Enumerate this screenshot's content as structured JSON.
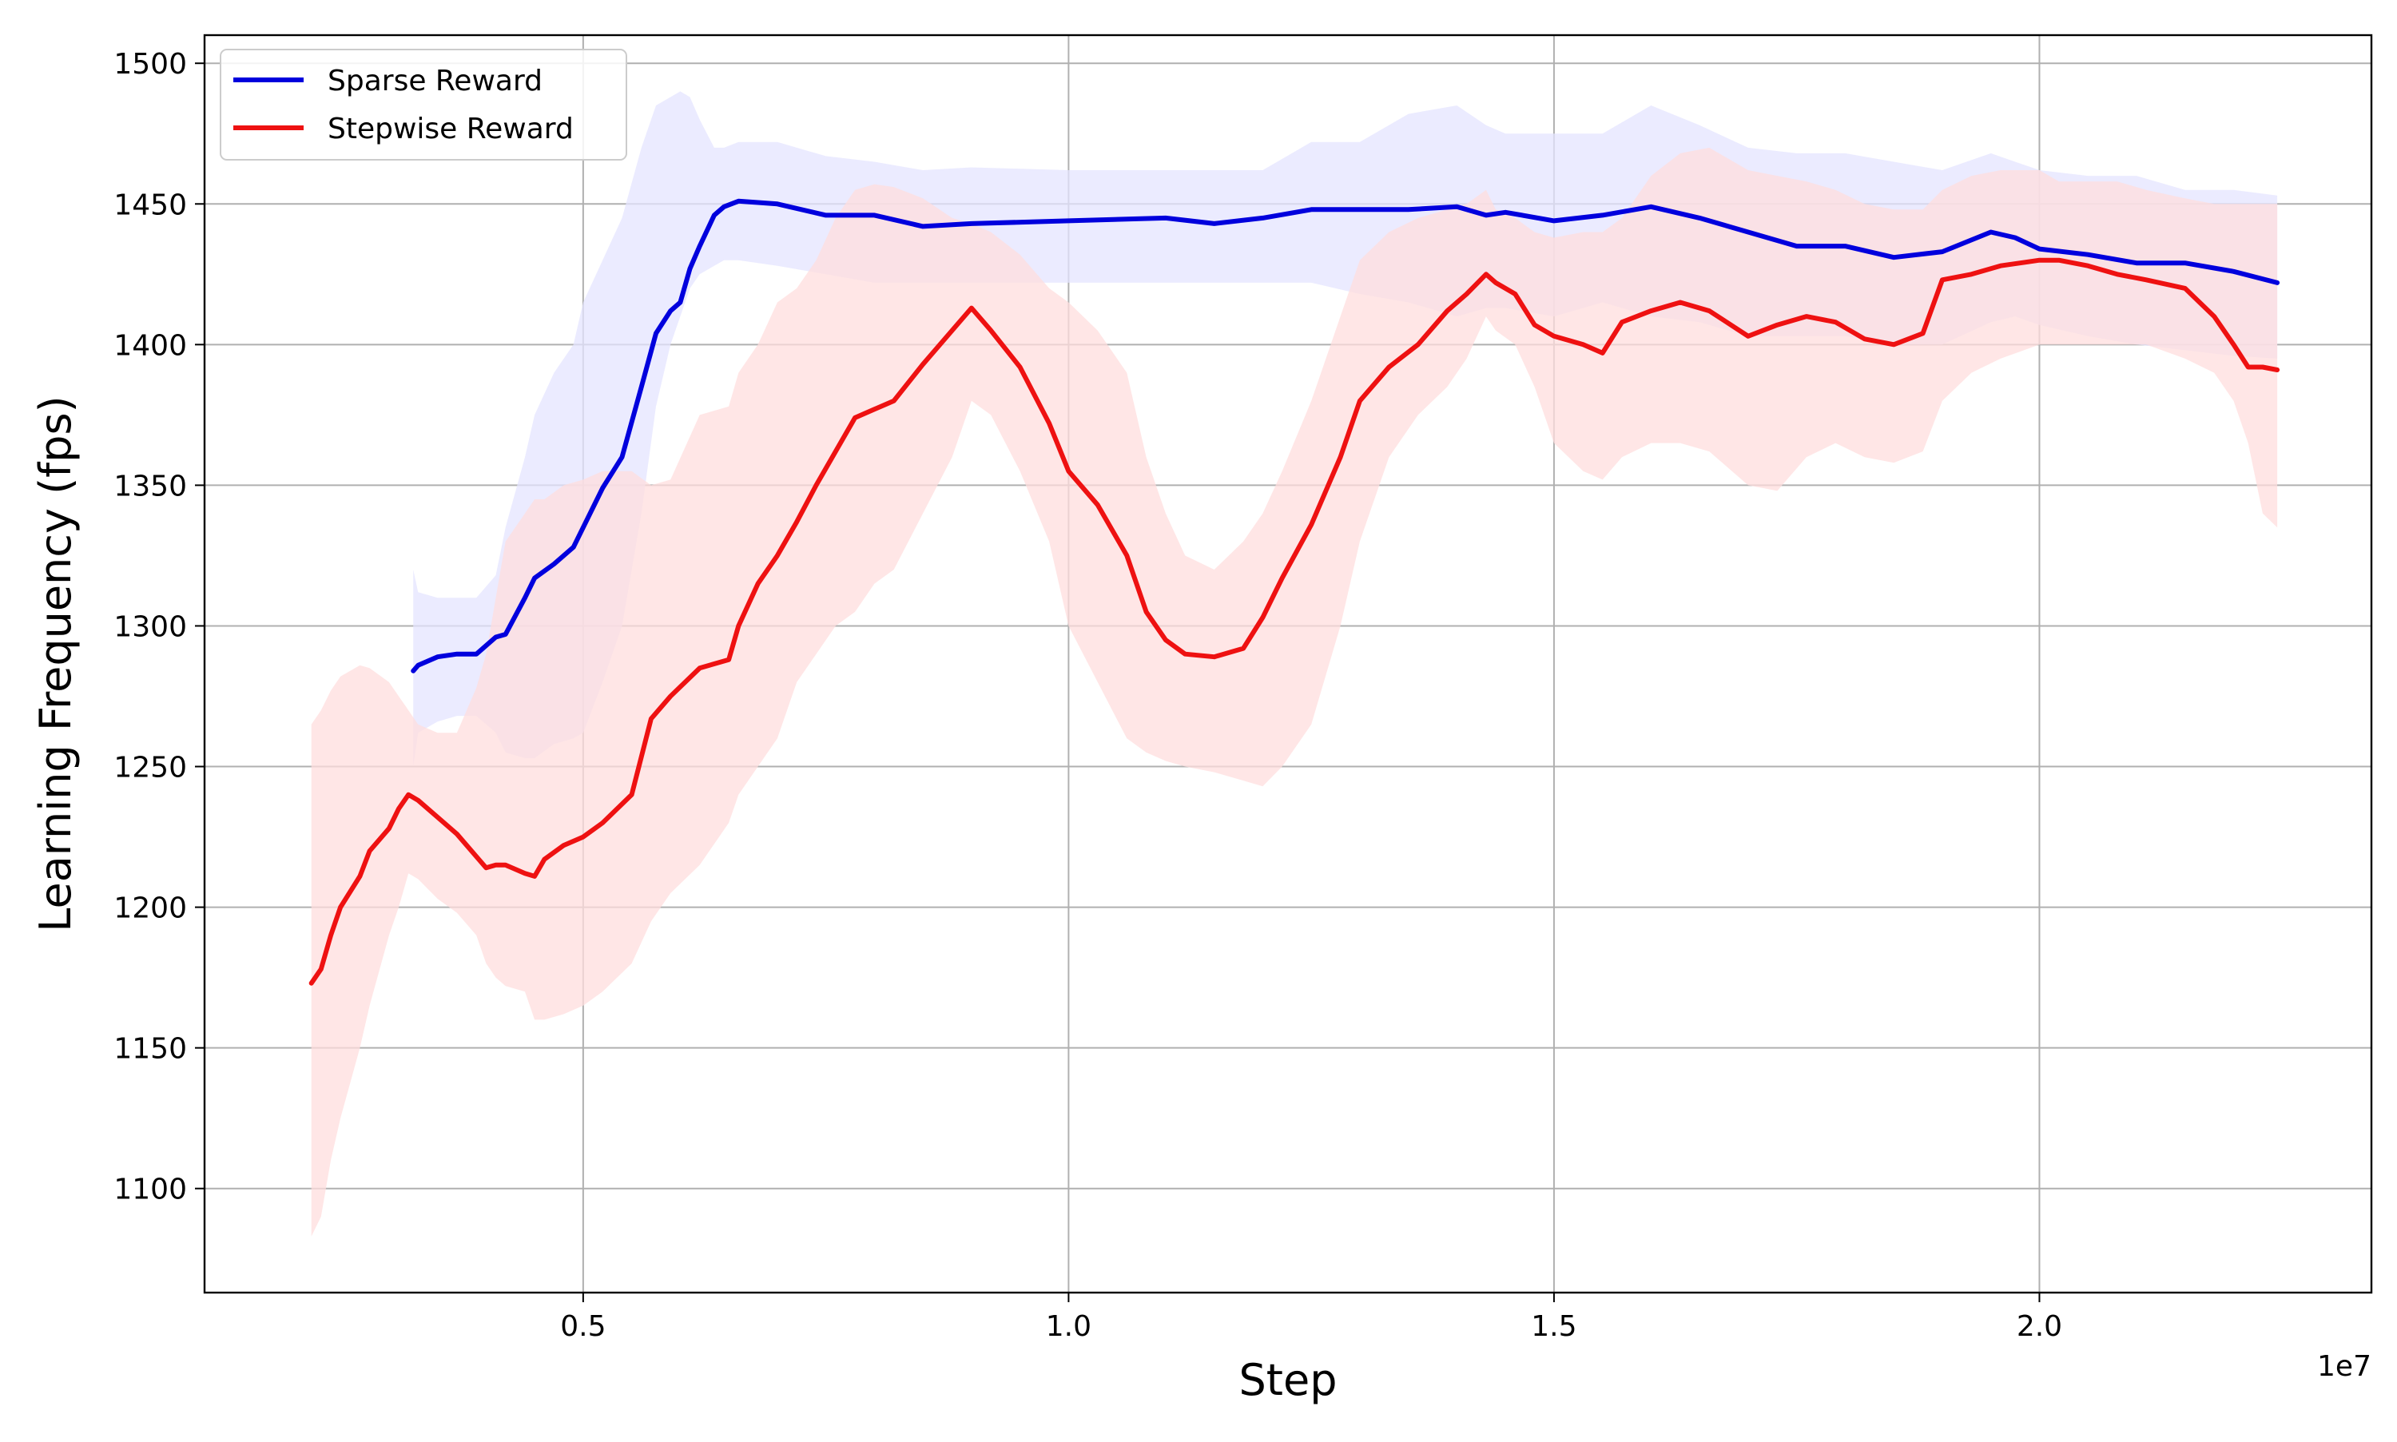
{
  "chart_data": {
    "type": "line",
    "title": "",
    "xlabel": "Step",
    "ylabel": "Learning Frequency (fps)",
    "x_offset_label": "1e7",
    "xlim": [
      0.11,
      2.342
    ],
    "ylim": [
      1063,
      1510
    ],
    "xticks": [
      0.5,
      1.0,
      1.5,
      2.0
    ],
    "xtick_labels": [
      "0.5",
      "1.0",
      "1.5",
      "2.0"
    ],
    "yticks": [
      1100,
      1150,
      1200,
      1250,
      1300,
      1350,
      1400,
      1450,
      1500
    ],
    "ytick_labels": [
      "1100",
      "1150",
      "1200",
      "1250",
      "1300",
      "1350",
      "1400",
      "1450",
      "1500"
    ],
    "grid": true,
    "legend_position": "top-left",
    "series": [
      {
        "name": "Sparse Reward",
        "color": "#0000dd",
        "band_color": "#e4e4ff",
        "x": [
          0.325,
          0.33,
          0.35,
          0.37,
          0.39,
          0.41,
          0.42,
          0.44,
          0.45,
          0.47,
          0.49,
          0.5,
          0.52,
          0.54,
          0.56,
          0.575,
          0.59,
          0.6,
          0.61,
          0.62,
          0.635,
          0.645,
          0.66,
          0.7,
          0.75,
          0.8,
          0.85,
          0.9,
          1.0,
          1.1,
          1.15,
          1.2,
          1.25,
          1.3,
          1.35,
          1.4,
          1.43,
          1.45,
          1.5,
          1.55,
          1.6,
          1.65,
          1.7,
          1.75,
          1.8,
          1.85,
          1.9,
          1.95,
          1.975,
          2.0,
          2.05,
          2.1,
          2.15,
          2.2,
          2.245
        ],
        "y": [
          1284,
          1286,
          1289,
          1290,
          1290,
          1296,
          1297,
          1310,
          1317,
          1322,
          1328,
          1335,
          1349,
          1360,
          1385,
          1404,
          1412,
          1415,
          1427,
          1435,
          1446,
          1449,
          1451,
          1450,
          1446,
          1446,
          1442,
          1443,
          1444,
          1445,
          1443,
          1445,
          1448,
          1448,
          1448,
          1449,
          1446,
          1447,
          1444,
          1446,
          1449,
          1445,
          1440,
          1435,
          1435,
          1431,
          1433,
          1440,
          1438,
          1434,
          1432,
          1429,
          1429,
          1426,
          1422
        ],
        "upper": [
          1320,
          1312,
          1310,
          1310,
          1310,
          1318,
          1335,
          1360,
          1375,
          1390,
          1400,
          1415,
          1430,
          1445,
          1470,
          1485,
          1488,
          1490,
          1488,
          1480,
          1470,
          1470,
          1472,
          1472,
          1467,
          1465,
          1462,
          1463,
          1462,
          1462,
          1462,
          1462,
          1472,
          1472,
          1482,
          1485,
          1478,
          1475,
          1475,
          1475,
          1485,
          1478,
          1470,
          1468,
          1468,
          1465,
          1462,
          1468,
          1465,
          1462,
          1460,
          1460,
          1455,
          1455,
          1453
        ],
        "lower": [
          1250,
          1262,
          1266,
          1268,
          1268,
          1262,
          1255,
          1253,
          1253,
          1258,
          1260,
          1262,
          1280,
          1300,
          1340,
          1378,
          1400,
          1410,
          1420,
          1425,
          1428,
          1430,
          1430,
          1428,
          1425,
          1422,
          1422,
          1422,
          1422,
          1422,
          1422,
          1422,
          1422,
          1418,
          1415,
          1410,
          1413,
          1413,
          1410,
          1415,
          1410,
          1408,
          1403,
          1403,
          1403,
          1400,
          1400,
          1408,
          1410,
          1407,
          1403,
          1400,
          1398,
          1396,
          1395
        ]
      },
      {
        "name": "Stepwise Reward",
        "color": "#ee1111",
        "band_color": "#ffdede",
        "x": [
          0.22,
          0.23,
          0.24,
          0.25,
          0.27,
          0.28,
          0.3,
          0.31,
          0.32,
          0.33,
          0.35,
          0.37,
          0.39,
          0.4,
          0.41,
          0.42,
          0.44,
          0.45,
          0.46,
          0.48,
          0.5,
          0.52,
          0.55,
          0.57,
          0.59,
          0.62,
          0.65,
          0.66,
          0.68,
          0.7,
          0.72,
          0.74,
          0.76,
          0.78,
          0.8,
          0.82,
          0.85,
          0.88,
          0.9,
          0.92,
          0.95,
          0.98,
          1.0,
          1.03,
          1.06,
          1.08,
          1.1,
          1.12,
          1.15,
          1.18,
          1.2,
          1.22,
          1.25,
          1.28,
          1.3,
          1.33,
          1.36,
          1.39,
          1.41,
          1.43,
          1.44,
          1.46,
          1.48,
          1.5,
          1.53,
          1.55,
          1.57,
          1.6,
          1.63,
          1.66,
          1.7,
          1.73,
          1.76,
          1.79,
          1.82,
          1.85,
          1.88,
          1.9,
          1.93,
          1.96,
          2.0,
          2.02,
          2.05,
          2.08,
          2.11,
          2.15,
          2.18,
          2.2,
          2.215,
          2.23,
          2.245
        ],
        "y": [
          1173,
          1178,
          1190,
          1200,
          1211,
          1220,
          1228,
          1235,
          1240,
          1238,
          1232,
          1226,
          1218,
          1214,
          1215,
          1215,
          1212,
          1211,
          1217,
          1222,
          1225,
          1230,
          1240,
          1267,
          1275,
          1285,
          1288,
          1300,
          1315,
          1325,
          1337,
          1350,
          1362,
          1374,
          1377,
          1380,
          1393,
          1405,
          1413,
          1405,
          1392,
          1372,
          1355,
          1343,
          1325,
          1305,
          1295,
          1290,
          1289,
          1292,
          1303,
          1317,
          1336,
          1360,
          1380,
          1392,
          1400,
          1412,
          1418,
          1425,
          1422,
          1418,
          1407,
          1403,
          1400,
          1397,
          1408,
          1412,
          1415,
          1412,
          1403,
          1407,
          1410,
          1408,
          1402,
          1400,
          1404,
          1423,
          1425,
          1428,
          1430,
          1430,
          1428,
          1425,
          1423,
          1420,
          1410,
          1400,
          1392,
          1392,
          1391
        ],
        "upper": [
          1265,
          1270,
          1277,
          1282,
          1286,
          1285,
          1280,
          1275,
          1270,
          1265,
          1262,
          1262,
          1278,
          1290,
          1310,
          1330,
          1340,
          1345,
          1345,
          1350,
          1352,
          1355,
          1355,
          1350,
          1352,
          1375,
          1378,
          1390,
          1400,
          1415,
          1420,
          1430,
          1445,
          1455,
          1457,
          1456,
          1452,
          1445,
          1443,
          1440,
          1432,
          1420,
          1415,
          1405,
          1390,
          1360,
          1340,
          1325,
          1320,
          1330,
          1340,
          1355,
          1380,
          1410,
          1430,
          1440,
          1445,
          1448,
          1450,
          1455,
          1448,
          1445,
          1440,
          1438,
          1440,
          1440,
          1445,
          1460,
          1468,
          1470,
          1462,
          1460,
          1458,
          1455,
          1450,
          1448,
          1448,
          1455,
          1460,
          1462,
          1462,
          1458,
          1458,
          1458,
          1455,
          1452,
          1450,
          1450,
          1450,
          1450,
          1450
        ],
        "lower": [
          1083,
          1090,
          1110,
          1125,
          1150,
          1165,
          1190,
          1200,
          1212,
          1210,
          1203,
          1198,
          1190,
          1180,
          1175,
          1172,
          1170,
          1160,
          1160,
          1162,
          1165,
          1170,
          1180,
          1195,
          1205,
          1215,
          1230,
          1240,
          1250,
          1260,
          1280,
          1290,
          1300,
          1305,
          1315,
          1320,
          1340,
          1360,
          1380,
          1375,
          1355,
          1330,
          1300,
          1280,
          1260,
          1255,
          1252,
          1250,
          1248,
          1245,
          1243,
          1250,
          1265,
          1300,
          1330,
          1360,
          1375,
          1385,
          1395,
          1410,
          1405,
          1400,
          1385,
          1365,
          1355,
          1352,
          1360,
          1365,
          1365,
          1362,
          1350,
          1348,
          1360,
          1365,
          1360,
          1358,
          1362,
          1380,
          1390,
          1395,
          1400,
          1400,
          1400,
          1400,
          1400,
          1395,
          1390,
          1380,
          1365,
          1340,
          1335
        ]
      }
    ]
  }
}
